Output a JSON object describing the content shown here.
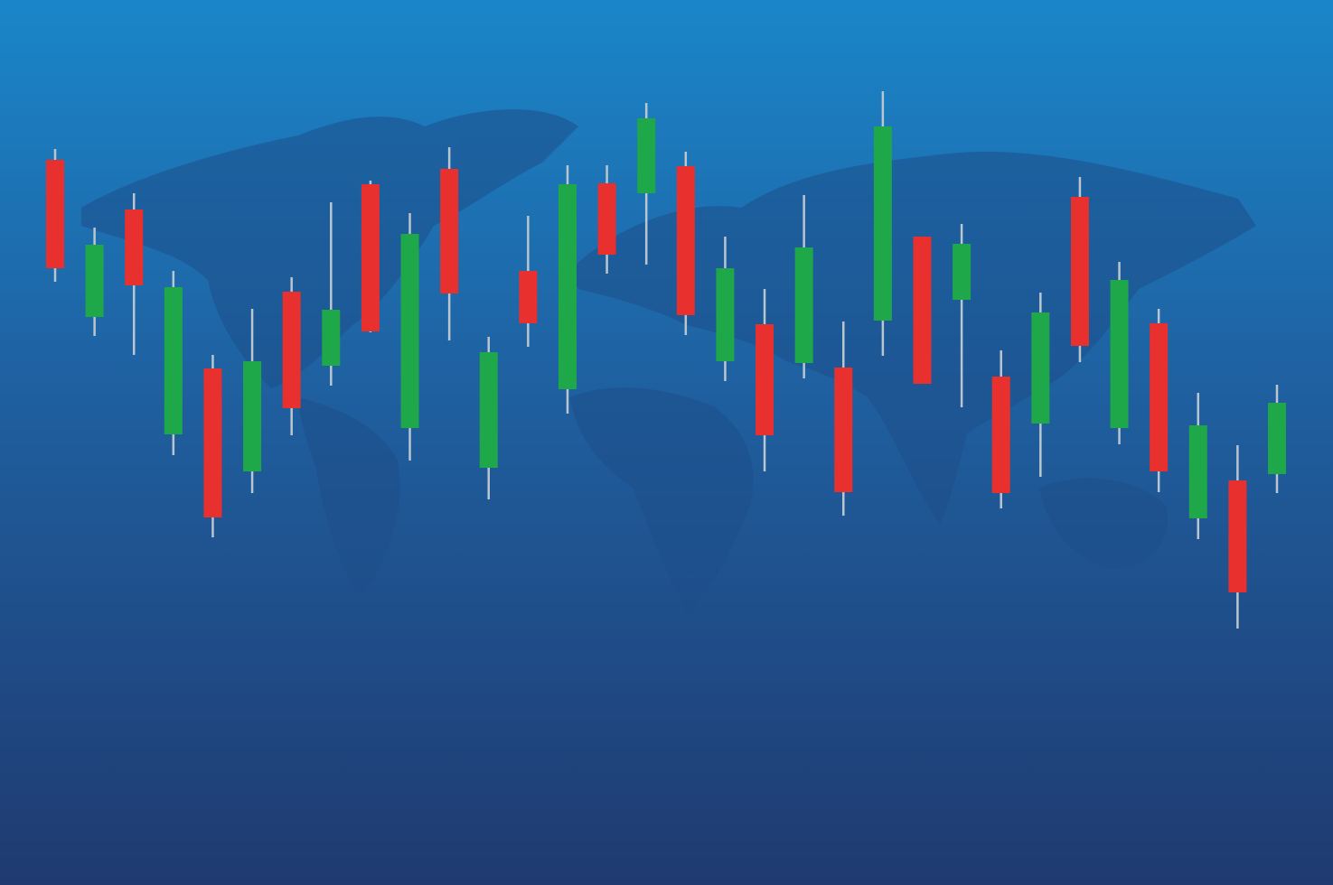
{
  "chart_data": {
    "type": "candlestick",
    "open": [
      803,
      629,
      748,
      499,
      572,
      458,
      657,
      575,
      776,
      506,
      793,
      462,
      680,
      549,
      777,
      766,
      796,
      580,
      621,
      578,
      573,
      625,
      718,
      648,
      563,
      511,
      762,
      506,
      622,
      406,
      448,
      455
    ],
    "high": [
      815,
      728,
      766,
      680,
      587,
      638,
      673,
      756,
      780,
      744,
      817,
      607,
      741,
      797,
      797,
      866,
      812,
      718,
      660,
      764,
      624,
      879,
      718,
      732,
      592,
      656,
      784,
      690,
      638,
      545,
      487,
      554
    ],
    "low": [
      668,
      608,
      587,
      476,
      385,
      434,
      498,
      553,
      612,
      470,
      603,
      427,
      596,
      522,
      677,
      687,
      609,
      558,
      458,
      561,
      409,
      586,
      555,
      529,
      417,
      452,
      579,
      488,
      435,
      383,
      284,
      434
    ],
    "close": [
      683,
      709,
      664,
      662,
      407,
      580,
      528,
      637,
      613,
      721,
      655,
      590,
      622,
      776,
      698,
      849,
      631,
      683,
      498,
      706,
      435,
      840,
      555,
      710,
      434,
      634,
      597,
      670,
      458,
      509,
      324,
      534
    ],
    "up_color": "#1ea84a",
    "down_color": "#e8302e",
    "wick_color": "#b9c6cf",
    "ylim": [
      0,
      980
    ]
  }
}
